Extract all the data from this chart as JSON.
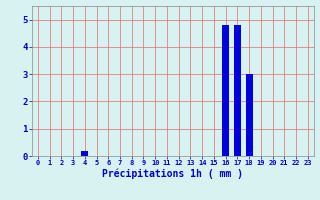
{
  "hours": [
    0,
    1,
    2,
    3,
    4,
    5,
    6,
    7,
    8,
    9,
    10,
    11,
    12,
    13,
    14,
    15,
    16,
    17,
    18,
    19,
    20,
    21,
    22,
    23
  ],
  "values": [
    0,
    0,
    0,
    0,
    0.2,
    0,
    0,
    0,
    0,
    0,
    0,
    0,
    0,
    0,
    0,
    0,
    4.8,
    4.8,
    3.0,
    0,
    0,
    0,
    0,
    0
  ],
  "bar_color": "#0000dd",
  "bg_color": "#d8f2f2",
  "grid_color": "#e08080",
  "xlabel": "Précipitations 1h ( mm )",
  "xlabel_color": "#0000cc",
  "tick_color": "#0000cc",
  "ylim": [
    0,
    5.5
  ],
  "yticks": [
    0,
    1,
    2,
    3,
    4,
    5
  ],
  "bar_width": 0.6
}
